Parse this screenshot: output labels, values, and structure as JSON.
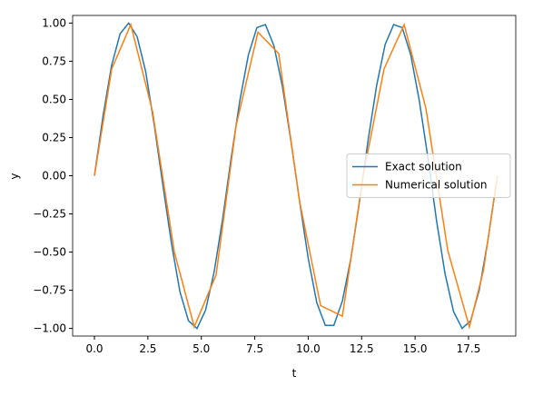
{
  "chart_data": {
    "type": "line",
    "x_label": "t",
    "y_label": "y",
    "xlim": [
      -1.02,
      19.71
    ],
    "ylim": [
      -1.05,
      1.05
    ],
    "xticks": [
      {
        "value": 0,
        "label": "0.0"
      },
      {
        "value": 2.5,
        "label": "2.5"
      },
      {
        "value": 5,
        "label": "5.0"
      },
      {
        "value": 7.5,
        "label": "7.5"
      },
      {
        "value": 10,
        "label": "10.0"
      },
      {
        "value": 12.5,
        "label": "12.5"
      },
      {
        "value": 15,
        "label": "15.0"
      },
      {
        "value": 17.5,
        "label": "17.5"
      }
    ],
    "yticks": [
      {
        "value": -1,
        "label": "−1.00"
      },
      {
        "value": -0.75,
        "label": "−0.75"
      },
      {
        "value": -0.5,
        "label": "−0.50"
      },
      {
        "value": -0.25,
        "label": "−0.25"
      },
      {
        "value": 0,
        "label": "0.00"
      },
      {
        "value": 0.25,
        "label": "0.25"
      },
      {
        "value": 0.5,
        "label": "0.50"
      },
      {
        "value": 0.75,
        "label": "0.75"
      },
      {
        "value": 1,
        "label": "1.00"
      }
    ],
    "legend": "center right",
    "series": [
      {
        "name": "Exact solution",
        "color": "#1f77b4",
        "x": [
          0,
          0.4,
          0.8,
          1.2,
          1.6,
          2.0,
          2.4,
          2.8,
          3.2,
          3.6,
          4.0,
          4.4,
          4.8,
          5.2,
          5.6,
          6.0,
          6.4,
          6.8,
          7.2,
          7.6,
          8.0,
          8.4,
          8.8,
          9.2,
          9.6,
          10.0,
          10.4,
          10.8,
          11.2,
          11.6,
          12.0,
          12.4,
          12.8,
          13.2,
          13.6,
          14.0,
          14.4,
          14.8,
          15.2,
          15.6,
          16.0,
          16.4,
          16.8,
          17.2,
          17.6,
          18.0,
          18.4,
          18.8
        ],
        "values": [
          0,
          0.39,
          0.72,
          0.93,
          1.0,
          0.91,
          0.68,
          0.33,
          -0.06,
          -0.44,
          -0.76,
          -0.95,
          -1.0,
          -0.88,
          -0.63,
          -0.28,
          0.12,
          0.49,
          0.79,
          0.97,
          0.99,
          0.85,
          0.58,
          0.22,
          -0.17,
          -0.54,
          -0.83,
          -0.98,
          -0.98,
          -0.82,
          -0.54,
          -0.17,
          0.23,
          0.59,
          0.86,
          0.99,
          0.97,
          0.79,
          0.49,
          0.12,
          -0.29,
          -0.64,
          -0.89,
          -1.0,
          -0.95,
          -0.75,
          -0.43,
          -0.05
        ]
      },
      {
        "name": "Numerical solution",
        "color": "#ff7f0e",
        "x": [
          0,
          0.81,
          1.7,
          2.72,
          3.74,
          4.67,
          5.69,
          6.63,
          7.65,
          8.62,
          9.6,
          10.58,
          11.6,
          12.57,
          13.55,
          14.49,
          15.51,
          16.53,
          17.54,
          18.2,
          18.85
        ],
        "values": [
          0,
          0.7,
          0.99,
          0.42,
          -0.5,
          -0.99,
          -0.65,
          0.33,
          0.94,
          0.8,
          -0.17,
          -0.85,
          -0.92,
          0.0,
          0.7,
          0.99,
          0.44,
          -0.49,
          -0.99,
          -0.62,
          0.0
        ]
      }
    ]
  }
}
